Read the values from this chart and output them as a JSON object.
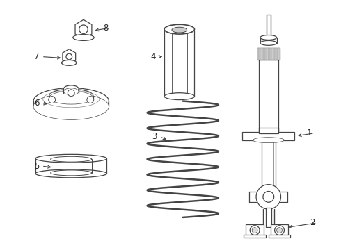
{
  "background_color": "#ffffff",
  "line_color": "#444444",
  "label_color": "#222222",
  "fig_width": 4.9,
  "fig_height": 3.6,
  "dpi": 100
}
